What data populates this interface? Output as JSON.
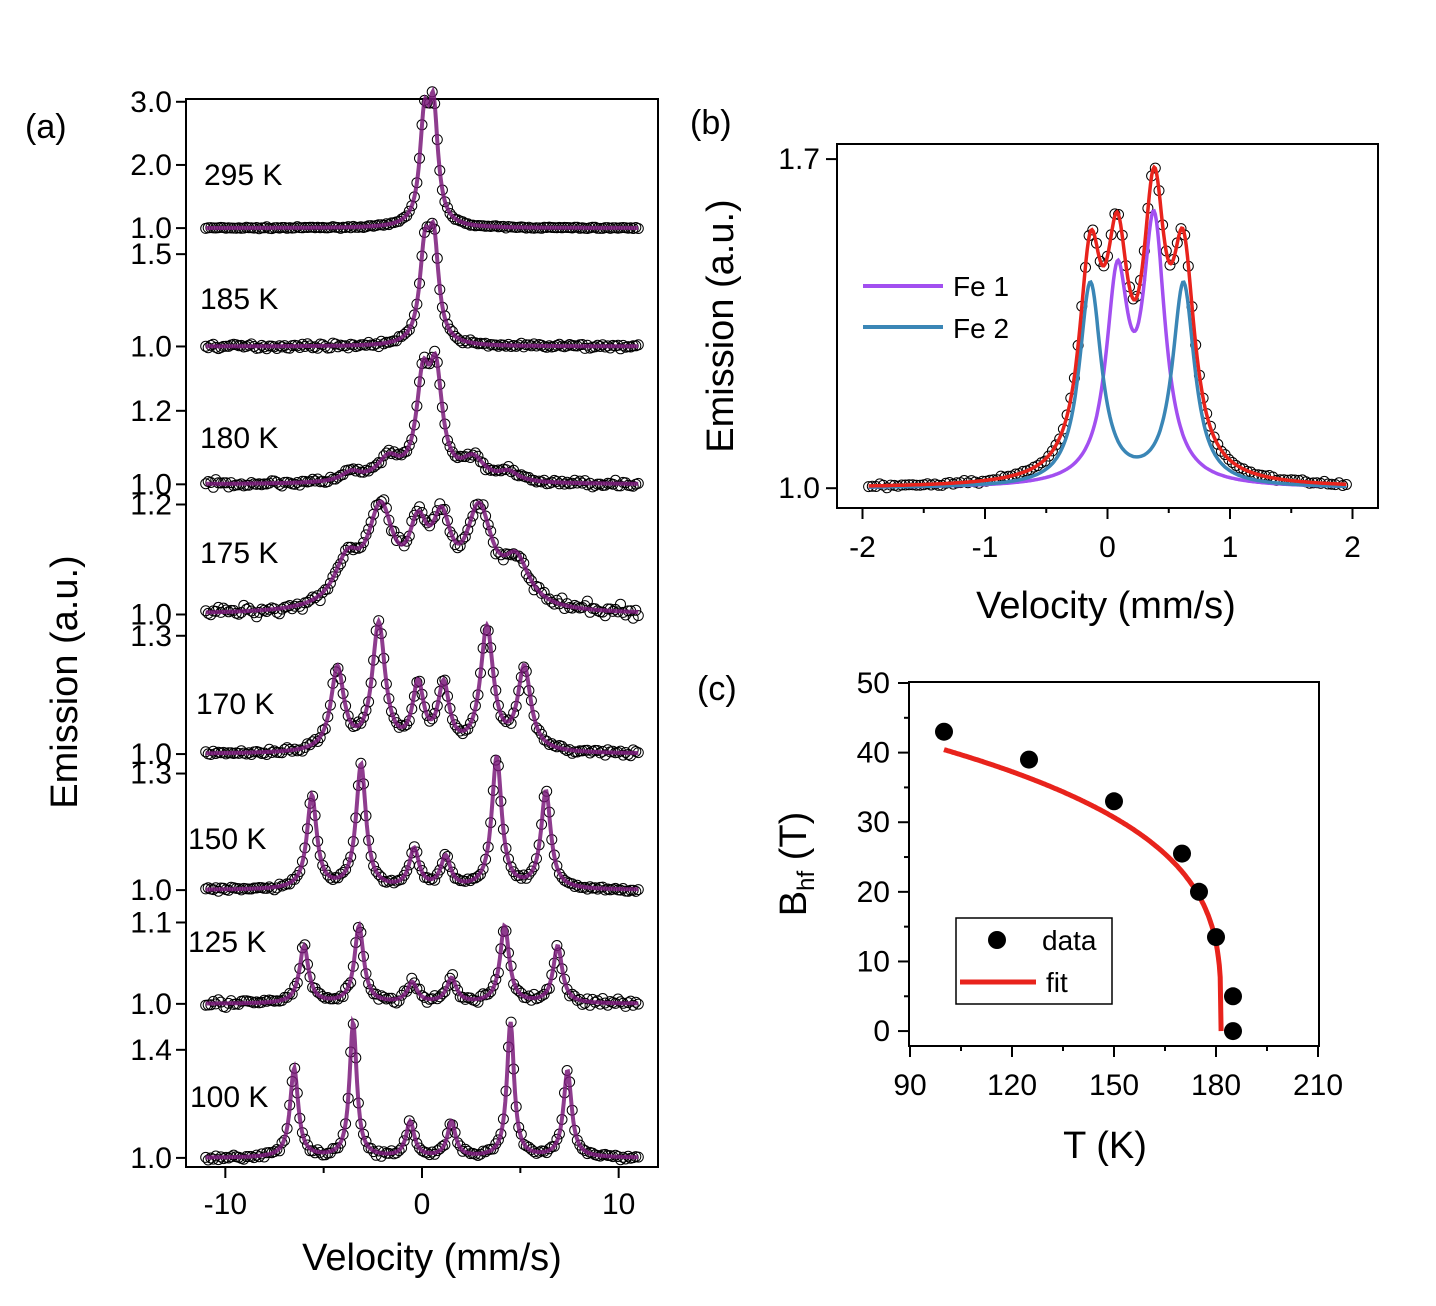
{
  "figure": {
    "panel_a_label": "(a)",
    "panel_b_label": "(b)",
    "panel_c_label": "(c)"
  },
  "chart_data": [
    {
      "panel": "a",
      "type": "line",
      "title": "",
      "xlabel": "Velocity (mm/s)",
      "ylabel": "Emission (a.u.)",
      "xlim": [
        -12,
        12
      ],
      "xticks": [
        -10,
        0,
        10
      ],
      "xtick_labels": [
        "-10",
        "0",
        "10"
      ],
      "fit_color": "#7a1a7a",
      "marker_style": "open-circle",
      "spectra": [
        {
          "temperature": "295 K",
          "ylim": [
            0.97,
            3.06
          ],
          "yticks": [
            1.0,
            2.0,
            3.0
          ],
          "ytick_labels": [
            "1.0",
            "2.0",
            "3.0"
          ],
          "baseline": 1.0,
          "noise": 0.012,
          "peaks": [
            {
              "center": 0.12,
              "height": 1.55,
              "width": 0.28
            },
            {
              "center": 0.58,
              "height": 1.72,
              "width": 0.28
            }
          ]
        },
        {
          "temperature": "185 K",
          "ylim": [
            0.97,
            1.62
          ],
          "yticks": [
            1.0,
            1.5
          ],
          "ytick_labels": [
            "1.0",
            "1.5"
          ],
          "baseline": 1.0,
          "noise": 0.012,
          "peaks": [
            {
              "center": 0.15,
              "height": 0.48,
              "width": 0.32
            },
            {
              "center": 0.6,
              "height": 0.5,
              "width": 0.3
            }
          ]
        },
        {
          "temperature": "180 K",
          "ylim": [
            0.99,
            1.36
          ],
          "yticks": [
            1.0,
            1.2
          ],
          "ytick_labels": [
            "1.0",
            "1.2"
          ],
          "baseline": 1.0,
          "noise": 0.008,
          "peaks": [
            {
              "center": -3.6,
              "height": 0.025,
              "width": 0.6
            },
            {
              "center": -1.7,
              "height": 0.06,
              "width": 0.7
            },
            {
              "center": 0.05,
              "height": 0.25,
              "width": 0.4
            },
            {
              "center": 0.7,
              "height": 0.27,
              "width": 0.4
            },
            {
              "center": 2.6,
              "height": 0.06,
              "width": 0.7
            },
            {
              "center": 4.4,
              "height": 0.025,
              "width": 0.6
            }
          ]
        },
        {
          "temperature": "175 K",
          "ylim": [
            0.99,
            1.23
          ],
          "yticks": [
            1.0,
            1.2
          ],
          "ytick_labels": [
            "1.0",
            "1.2"
          ],
          "baseline": 1.0,
          "noise": 0.01,
          "peaks": [
            {
              "center": -3.8,
              "height": 0.08,
              "width": 0.8
            },
            {
              "center": -2.1,
              "height": 0.17,
              "width": 0.8
            },
            {
              "center": -0.2,
              "height": 0.12,
              "width": 0.6
            },
            {
              "center": 1.0,
              "height": 0.13,
              "width": 0.6
            },
            {
              "center": 2.9,
              "height": 0.17,
              "width": 0.8
            },
            {
              "center": 4.8,
              "height": 0.08,
              "width": 0.8
            }
          ]
        },
        {
          "temperature": "170 K",
          "ylim": [
            0.99,
            1.34
          ],
          "yticks": [
            1.0,
            1.3
          ],
          "ytick_labels": [
            "1.0",
            "1.3"
          ],
          "baseline": 1.0,
          "noise": 0.008,
          "peaks": [
            {
              "center": -4.3,
              "height": 0.21,
              "width": 0.4
            },
            {
              "center": -2.2,
              "height": 0.32,
              "width": 0.4
            },
            {
              "center": -0.2,
              "height": 0.16,
              "width": 0.35
            },
            {
              "center": 1.1,
              "height": 0.16,
              "width": 0.35
            },
            {
              "center": 3.3,
              "height": 0.31,
              "width": 0.4
            },
            {
              "center": 5.2,
              "height": 0.21,
              "width": 0.4
            }
          ]
        },
        {
          "temperature": "150 K",
          "ylim": [
            0.99,
            1.34
          ],
          "yticks": [
            1.0,
            1.3
          ],
          "ytick_labels": [
            "1.0",
            "1.3"
          ],
          "baseline": 1.0,
          "noise": 0.006,
          "peaks": [
            {
              "center": -5.6,
              "height": 0.24,
              "width": 0.3
            },
            {
              "center": -3.1,
              "height": 0.32,
              "width": 0.3
            },
            {
              "center": -0.4,
              "height": 0.1,
              "width": 0.3
            },
            {
              "center": 1.2,
              "height": 0.08,
              "width": 0.3
            },
            {
              "center": 3.8,
              "height": 0.34,
              "width": 0.3
            },
            {
              "center": 6.3,
              "height": 0.25,
              "width": 0.3
            }
          ]
        },
        {
          "temperature": "125 K",
          "ylim": [
            0.99,
            1.135
          ],
          "yticks": [
            1.0,
            1.1
          ],
          "ytick_labels": [
            "1.0",
            "1.1"
          ],
          "baseline": 1.0,
          "noise": 0.005,
          "peaks": [
            {
              "center": -6.0,
              "height": 0.07,
              "width": 0.28
            },
            {
              "center": -3.2,
              "height": 0.095,
              "width": 0.28
            },
            {
              "center": -0.5,
              "height": 0.025,
              "width": 0.3
            },
            {
              "center": 1.5,
              "height": 0.03,
              "width": 0.3
            },
            {
              "center": 4.2,
              "height": 0.095,
              "width": 0.28
            },
            {
              "center": 6.9,
              "height": 0.07,
              "width": 0.28
            }
          ]
        },
        {
          "temperature": "100 K",
          "ylim": [
            0.97,
            1.54
          ],
          "yticks": [
            1.0,
            1.4
          ],
          "ytick_labels": [
            "1.0",
            "1.4"
          ],
          "baseline": 1.0,
          "noise": 0.01,
          "peaks": [
            {
              "center": -6.5,
              "height": 0.33,
              "width": 0.25
            },
            {
              "center": -3.5,
              "height": 0.5,
              "width": 0.22
            },
            {
              "center": -0.6,
              "height": 0.13,
              "width": 0.25
            },
            {
              "center": 1.5,
              "height": 0.13,
              "width": 0.25
            },
            {
              "center": 4.5,
              "height": 0.5,
              "width": 0.22
            },
            {
              "center": 7.4,
              "height": 0.32,
              "width": 0.25
            }
          ]
        }
      ]
    },
    {
      "panel": "b",
      "type": "line",
      "title": "",
      "xlabel": "Velocity (mm/s)",
      "ylabel": "Emission (a.u.)",
      "xlim": [
        -2.2,
        2.2
      ],
      "ylim": [
        0.96,
        1.73
      ],
      "xticks": [
        -2,
        -1,
        0,
        1,
        2
      ],
      "xtick_labels": [
        "-2",
        "-1",
        "0",
        "1",
        "2"
      ],
      "yticks": [
        1.0,
        1.7
      ],
      "ytick_labels": [
        "1.0",
        "1.7"
      ],
      "baseline": 1.0,
      "legend_position": "center-left",
      "series": [
        {
          "name": "Fe 1",
          "color": "#a24ff0",
          "peaks": [
            {
              "center": 0.08,
              "height": 0.42,
              "width": 0.11
            },
            {
              "center": 0.38,
              "height": 0.54,
              "width": 0.11
            }
          ]
        },
        {
          "name": "Fe 2",
          "color": "#3a86b6",
          "peaks": [
            {
              "center": -0.14,
              "height": 0.43,
              "width": 0.11
            },
            {
              "center": 0.62,
              "height": 0.43,
              "width": 0.11
            }
          ]
        }
      ],
      "total_fit_color": "#e8231c",
      "data_marker_style": "open-circle"
    },
    {
      "panel": "c",
      "type": "scatter",
      "title": "",
      "xlabel": "T (K)",
      "ylabel_main": "B",
      "ylabel_sub": "hf",
      "ylabel_unit": " (T)",
      "xlim": [
        90,
        210
      ],
      "ylim": [
        -2,
        50
      ],
      "xticks": [
        90,
        120,
        150,
        180,
        210
      ],
      "xtick_labels": [
        "90",
        "120",
        "150",
        "180",
        "210"
      ],
      "yticks": [
        0,
        10,
        20,
        30,
        40,
        50
      ],
      "ytick_labels": [
        "0",
        "10",
        "20",
        "30",
        "40",
        "50"
      ],
      "legend_position": "bottom-left",
      "series": [
        {
          "name": "data",
          "kind": "scatter",
          "color": "#000000",
          "x": [
            100,
            125,
            150,
            170,
            175,
            180,
            185,
            185
          ],
          "y": [
            43,
            39,
            33,
            25.5,
            20,
            13.5,
            5,
            0
          ]
        },
        {
          "name": "fit",
          "kind": "line",
          "color": "#e8231c",
          "model": "B0*(1-T/Tc)^beta",
          "B0": 51,
          "Tc": 181.5,
          "beta": 0.29,
          "x_range": [
            100,
            181.5
          ]
        }
      ]
    }
  ]
}
